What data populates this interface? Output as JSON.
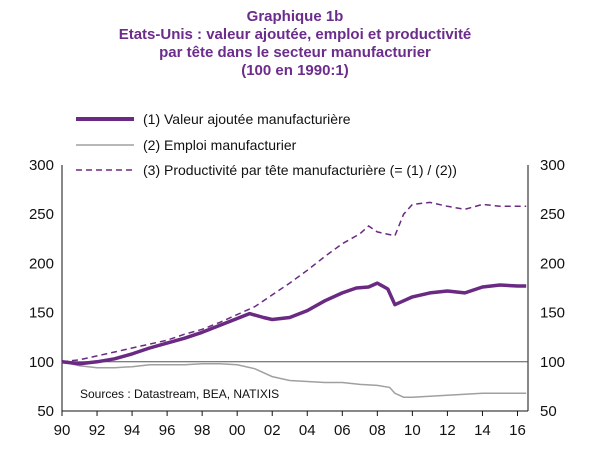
{
  "chart_data": {
    "type": "line",
    "title": "Graphique 1b",
    "subtitle_lines": [
      "Etats-Unis : valeur ajoutée, emploi et productivité",
      "par tête dans le secteur manufacturier",
      "(100 en 1990:1)"
    ],
    "source": "Sources : Datastream, BEA, NATIXIS",
    "xlabel": "",
    "ylabel": "",
    "xlim": [
      1990,
      2016.6
    ],
    "ylim": [
      50,
      300
    ],
    "x_tick_labels": [
      "90",
      "92",
      "94",
      "96",
      "98",
      "00",
      "02",
      "04",
      "06",
      "08",
      "10",
      "12",
      "14",
      "16"
    ],
    "x_tick_values": [
      1990,
      1992,
      1994,
      1996,
      1998,
      2000,
      2002,
      2004,
      2006,
      2008,
      2010,
      2012,
      2014,
      2016
    ],
    "y_tick_labels": [
      "50",
      "100",
      "150",
      "200",
      "250",
      "300"
    ],
    "y_tick_values": [
      50,
      100,
      150,
      200,
      250,
      300
    ],
    "reference_line": 100,
    "legend_position": "top-left",
    "series": [
      {
        "name": "(1) Valeur ajoutée manufacturière",
        "style": "thick-solid",
        "color": "#6a2a83",
        "x": [
          1990,
          1991,
          1992,
          1993,
          1994,
          1995,
          1996,
          1997,
          1998,
          1999,
          2000,
          2000.7,
          2001.5,
          2002,
          2003,
          2004,
          2005,
          2006,
          2006.8,
          2007.5,
          2008,
          2008.6,
          2009,
          2009.5,
          2010,
          2011,
          2012,
          2013,
          2014,
          2015,
          2016,
          2016.5
        ],
        "y": [
          100,
          98,
          100,
          103,
          108,
          114,
          119,
          124,
          130,
          137,
          144,
          149,
          145,
          143,
          145,
          152,
          162,
          170,
          175,
          176,
          180,
          174,
          158,
          162,
          166,
          170,
          172,
          170,
          176,
          178,
          177,
          177
        ]
      },
      {
        "name": "(2) Emploi manufacturier",
        "style": "thin-solid",
        "color": "#a0a0a0",
        "x": [
          1990,
          1991,
          1992,
          1993,
          1994,
          1995,
          1996,
          1997,
          1998,
          1999,
          2000,
          2001,
          2002,
          2003,
          2004,
          2005,
          2006,
          2007,
          2008,
          2008.7,
          2009,
          2009.5,
          2010,
          2011,
          2012,
          2013,
          2014,
          2015,
          2016,
          2016.5
        ],
        "y": [
          100,
          96,
          94,
          94,
          95,
          97,
          97,
          97,
          98,
          98,
          97,
          93,
          85,
          81,
          80,
          79,
          79,
          77,
          76,
          74,
          68,
          64,
          64,
          65,
          66,
          67,
          68,
          68,
          68,
          68
        ]
      },
      {
        "name": "(3) Productivité par tête  manufacturière (= (1) / (2))",
        "style": "dashed",
        "color": "#6a2a83",
        "x": [
          1990,
          1991,
          1992,
          1993,
          1994,
          1995,
          1996,
          1997,
          1998,
          1999,
          2000,
          2001,
          2002,
          2003,
          2004,
          2005,
          2006,
          2007,
          2007.5,
          2008,
          2008.5,
          2009,
          2009.5,
          2010,
          2011,
          2012,
          2013,
          2014,
          2015,
          2016,
          2016.5
        ],
        "y": [
          100,
          102,
          106,
          110,
          114,
          118,
          122,
          128,
          133,
          140,
          148,
          156,
          168,
          180,
          193,
          207,
          220,
          230,
          238,
          232,
          230,
          228,
          250,
          260,
          262,
          258,
          255,
          260,
          258,
          258,
          258
        ]
      }
    ]
  }
}
